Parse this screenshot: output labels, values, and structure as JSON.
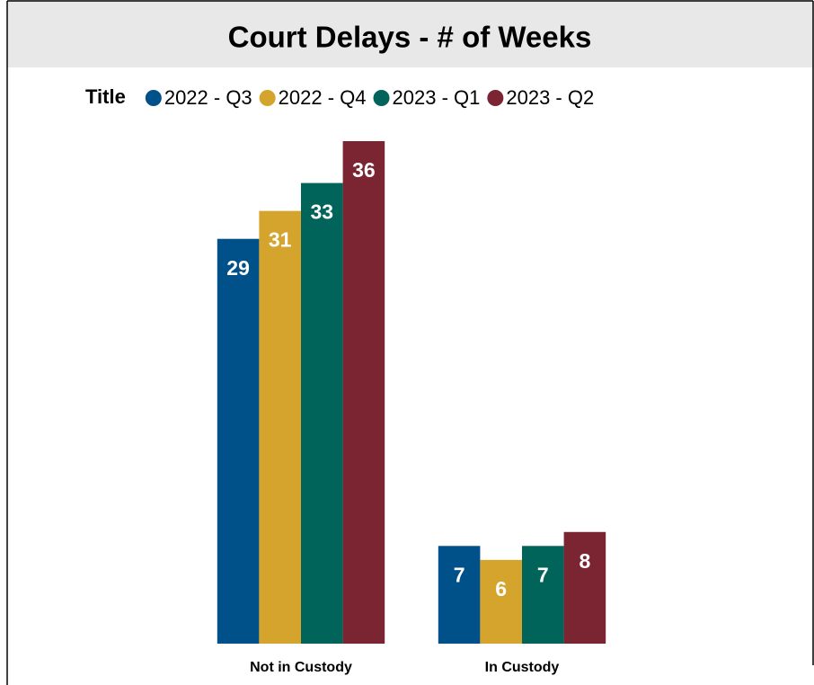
{
  "chart_data": {
    "type": "bar",
    "title": "Court Delays - # of Weeks",
    "legend_title": "Title",
    "categories": [
      "Not in Custody",
      "In Custody"
    ],
    "series": [
      {
        "name": "2022 - Q3",
        "color": "#00508a",
        "values": [
          29,
          7
        ]
      },
      {
        "name": "2022 - Q4",
        "color": "#d5a42c",
        "values": [
          31,
          6
        ]
      },
      {
        "name": "2023 - Q1",
        "color": "#00645a",
        "values": [
          33,
          7
        ]
      },
      {
        "name": "2023 - Q2",
        "color": "#7a2531",
        "values": [
          36,
          8
        ]
      }
    ]
  }
}
